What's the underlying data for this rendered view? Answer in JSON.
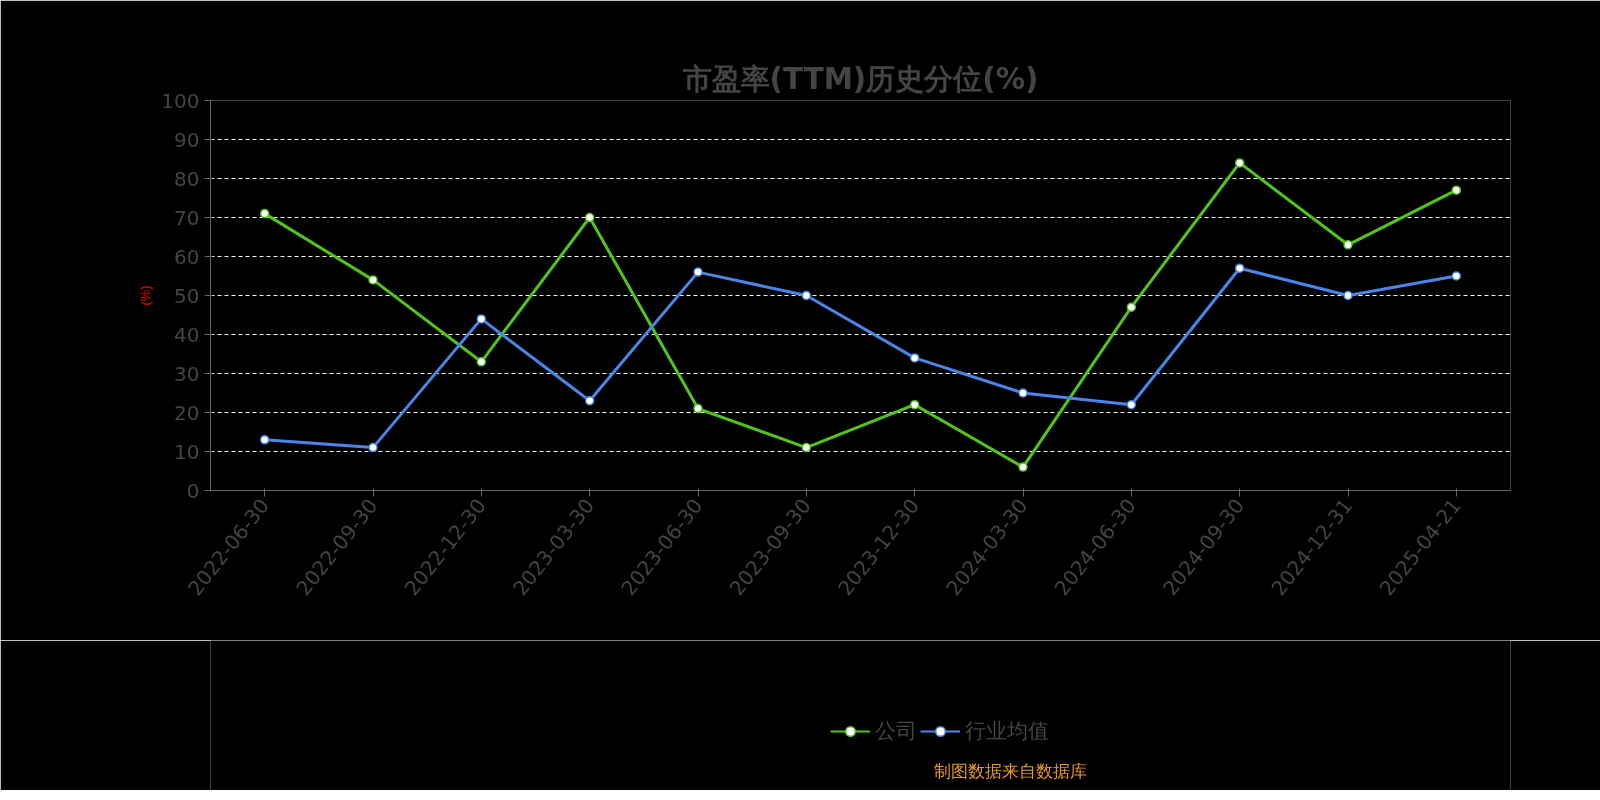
{
  "chart_data": {
    "type": "line",
    "title": "市盈率(TTM)历史分位(%)",
    "ylabel": "(%)",
    "categories": [
      "2022-06-30",
      "2022-09-30",
      "2022-12-30",
      "2023-03-30",
      "2023-06-30",
      "2023-09-30",
      "2023-12-30",
      "2024-03-30",
      "2024-06-30",
      "2024-09-30",
      "2024-12-31",
      "2025-04-21"
    ],
    "series": [
      {
        "name": "公司",
        "color": "#52c41a",
        "values": [
          71,
          54,
          33,
          70,
          21,
          11,
          22,
          6,
          47,
          84,
          63,
          77
        ]
      },
      {
        "name": "行业均值",
        "color": "#4a86e8",
        "values": [
          13,
          11,
          44,
          23,
          56,
          50,
          34,
          25,
          22,
          57,
          50,
          55
        ]
      }
    ],
    "ylim": [
      0,
      100
    ],
    "yticks": [
      0,
      10,
      20,
      30,
      40,
      50,
      60,
      70,
      80,
      90,
      100
    ],
    "grid": "y",
    "legend": "bottom",
    "marker": "circle",
    "line_style": "solid",
    "annotations": [
      "制图数据来自数据库"
    ]
  }
}
